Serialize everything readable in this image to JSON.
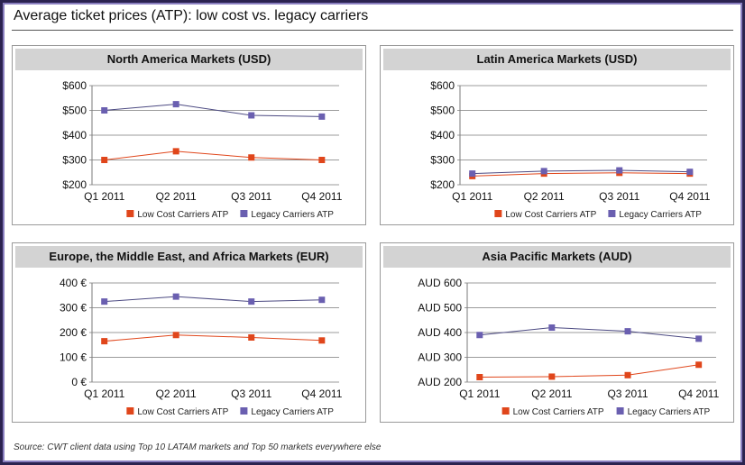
{
  "page": {
    "title": "Average ticket prices (ATP): low cost vs. legacy carriers",
    "source": "Source: CWT client data using Top 10 LATAM markets and Top 50 markets everywhere else"
  },
  "colors": {
    "low_cost": "#e0461b",
    "legacy": "#6a5fb0",
    "line_low_cost": "#e0461b",
    "line_legacy": "#4c4a82",
    "grid": "#7a7a7a"
  },
  "legend": {
    "low_cost_label": "Low Cost Carriers ATP",
    "legacy_label": "Legacy Carriers ATP"
  },
  "chart_data": [
    {
      "type": "line",
      "title": "North America Markets (USD)",
      "categories": [
        "Q1 2011",
        "Q2 2011",
        "Q3 2011",
        "Q4 2011"
      ],
      "yticks": [
        "$600",
        "$500",
        "$400",
        "$300",
        "$200"
      ],
      "ylim": [
        200,
        600
      ],
      "grid": true,
      "legend_position": "bottom",
      "series": [
        {
          "name": "Low Cost Carriers ATP",
          "values": [
            300,
            335,
            310,
            300
          ]
        },
        {
          "name": "Legacy Carriers ATP",
          "values": [
            500,
            525,
            480,
            475
          ]
        }
      ]
    },
    {
      "type": "line",
      "title": "Latin America Markets (USD)",
      "categories": [
        "Q1 2011",
        "Q2 2011",
        "Q3 2011",
        "Q4 2011"
      ],
      "yticks": [
        "$600",
        "$500",
        "$400",
        "$300",
        "$200"
      ],
      "ylim": [
        200,
        600
      ],
      "grid": true,
      "legend_position": "bottom",
      "series": [
        {
          "name": "Low Cost Carriers ATP",
          "values": [
            235,
            245,
            248,
            245
          ]
        },
        {
          "name": "Legacy Carriers ATP",
          "values": [
            245,
            255,
            258,
            252
          ]
        }
      ]
    },
    {
      "type": "line",
      "title": "Europe, the Middle East, and Africa Markets (EUR)",
      "categories": [
        "Q1 2011",
        "Q2 2011",
        "Q3 2011",
        "Q4 2011"
      ],
      "yticks": [
        "400 €",
        "300 €",
        "200 €",
        "100 €",
        "0 €"
      ],
      "ylim": [
        0,
        400
      ],
      "grid": true,
      "legend_position": "bottom",
      "series": [
        {
          "name": "Low Cost Carriers ATP",
          "values": [
            165,
            190,
            180,
            168
          ]
        },
        {
          "name": "Legacy Carriers ATP",
          "values": [
            325,
            345,
            325,
            332
          ]
        }
      ]
    },
    {
      "type": "line",
      "title": "Asia Pacific Markets (AUD)",
      "categories": [
        "Q1 2011",
        "Q2 2011",
        "Q3 2011",
        "Q4 2011"
      ],
      "yticks": [
        "AUD 600",
        "AUD 500",
        "AUD 400",
        "AUD 300",
        "AUD 200"
      ],
      "ylim": [
        200,
        600
      ],
      "grid": true,
      "legend_position": "bottom",
      "series": [
        {
          "name": "Low Cost Carriers ATP",
          "values": [
            220,
            222,
            228,
            270
          ]
        },
        {
          "name": "Legacy Carriers ATP",
          "values": [
            390,
            420,
            405,
            375
          ]
        }
      ]
    }
  ]
}
